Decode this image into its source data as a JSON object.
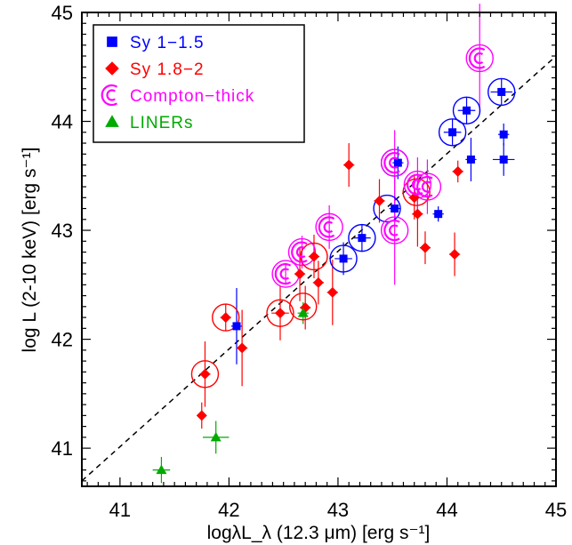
{
  "chart_data": {
    "type": "scatter",
    "title": "",
    "xlabel": "logλL_λ (12.3 μm) [erg s⁻¹]",
    "ylabel": "log L (2-10 keV) [erg s⁻¹]",
    "xlim": [
      40.65,
      45.0
    ],
    "ylim": [
      40.65,
      45.0
    ],
    "x_ticks": [
      "41",
      "42",
      "43",
      "44",
      "45"
    ],
    "y_ticks": [
      "41",
      "42",
      "43",
      "44",
      "45"
    ],
    "legend_position": "top-left",
    "grid": false,
    "fit_line": {
      "style": "dashed",
      "x": [
        40.65,
        45.0
      ],
      "y": [
        40.7,
        44.6
      ]
    },
    "series": [
      {
        "name": "Sy 1−1.5",
        "marker": "square",
        "color": "#0000ff",
        "points": [
          {
            "x": 42.07,
            "y": 42.12,
            "xerr": 0.05,
            "yerr": 0.35
          },
          {
            "x": 43.05,
            "y": 42.74,
            "xerr": 0.08,
            "yerr": 0.15
          },
          {
            "x": 43.22,
            "y": 42.93,
            "xerr": 0.08,
            "yerr": 0.12
          },
          {
            "x": 43.52,
            "y": 43.2,
            "xerr": 0.05,
            "yerr": 0.12
          },
          {
            "x": 43.55,
            "y": 43.62,
            "xerr": 0.05,
            "yerr": 0.15
          },
          {
            "x": 43.92,
            "y": 43.15,
            "xerr": 0.05,
            "yerr": 0.07
          },
          {
            "x": 44.05,
            "y": 43.9,
            "xerr": 0.08,
            "yerr": 0.12
          },
          {
            "x": 44.18,
            "y": 44.1,
            "xerr": 0.08,
            "yerr": 0.12
          },
          {
            "x": 44.22,
            "y": 43.65,
            "xerr": 0.05,
            "yerr": 0.2
          },
          {
            "x": 44.5,
            "y": 44.27,
            "xerr": 0.1,
            "yerr": 0.12
          },
          {
            "x": 44.52,
            "y": 43.88,
            "xerr": 0.05,
            "yerr": 0.1
          },
          {
            "x": 44.52,
            "y": 43.65,
            "xerr": 0.1,
            "yerr": 0.15
          }
        ]
      },
      {
        "name": "Sy 1.8−2",
        "marker": "diamond",
        "color": "#ff0000",
        "points": [
          {
            "x": 41.75,
            "y": 41.3,
            "xerr": 0.0,
            "yerr": 0.12
          },
          {
            "x": 41.78,
            "y": 41.68,
            "xerr": 0.05,
            "yerr": 0.3
          },
          {
            "x": 41.97,
            "y": 42.2,
            "xerr": 0.05,
            "yerr": 0.12
          },
          {
            "x": 42.12,
            "y": 41.92,
            "xerr": 0.05,
            "yerr": 0.35
          },
          {
            "x": 42.47,
            "y": 42.24,
            "xerr": 0.08,
            "yerr": 0.25
          },
          {
            "x": 42.65,
            "y": 42.6,
            "xerr": 0.05,
            "yerr": 0.25
          },
          {
            "x": 42.7,
            "y": 42.29,
            "xerr": 0.05,
            "yerr": 0.2
          },
          {
            "x": 42.78,
            "y": 42.76,
            "xerr": 0.05,
            "yerr": 0.2
          },
          {
            "x": 42.82,
            "y": 42.52,
            "xerr": 0.05,
            "yerr": 0.2
          },
          {
            "x": 42.95,
            "y": 42.43,
            "xerr": 0.05,
            "yerr": 0.3
          },
          {
            "x": 43.1,
            "y": 43.6,
            "xerr": 0.05,
            "yerr": 0.2
          },
          {
            "x": 43.38,
            "y": 43.27,
            "xerr": 0.05,
            "yerr": 0.2
          },
          {
            "x": 43.7,
            "y": 43.3,
            "xerr": 0.05,
            "yerr": 0.2
          },
          {
            "x": 43.73,
            "y": 43.15,
            "xerr": 0.05,
            "yerr": 0.3
          },
          {
            "x": 43.8,
            "y": 42.84,
            "xerr": 0.05,
            "yerr": 0.15
          },
          {
            "x": 44.07,
            "y": 42.78,
            "xerr": 0.05,
            "yerr": 0.2
          },
          {
            "x": 44.1,
            "y": 43.54,
            "xerr": 0.05,
            "yerr": 0.1
          }
        ]
      },
      {
        "name": "Compton−thick",
        "marker": "C",
        "color": "#ff00ff",
        "points": [
          {
            "x": 42.52,
            "y": 42.6,
            "yerr": 0.1
          },
          {
            "x": 42.67,
            "y": 42.8,
            "yerr": 0.15
          },
          {
            "x": 42.92,
            "y": 43.03,
            "yerr": 0.2
          },
          {
            "x": 43.52,
            "y": 43.62,
            "yerr": 0.3
          },
          {
            "x": 43.52,
            "y": 43.0,
            "yerr": 0.5
          },
          {
            "x": 43.73,
            "y": 43.42,
            "yerr": 0.25
          },
          {
            "x": 43.82,
            "y": 43.4,
            "yerr": 0.25
          },
          {
            "x": 44.3,
            "y": 44.58,
            "yerr": 0.5
          }
        ]
      },
      {
        "name": "LINERs",
        "marker": "triangle",
        "color": "#00aa00",
        "points": [
          {
            "x": 41.38,
            "y": 40.8,
            "xerr": 0.08,
            "yerr": 0.12
          },
          {
            "x": 41.88,
            "y": 41.1,
            "xerr": 0.12,
            "yerr": 0.15
          },
          {
            "x": 42.68,
            "y": 42.24,
            "xerr": 0.05,
            "yerr": 0.1
          }
        ]
      }
    ],
    "rings": [
      {
        "x": 41.78,
        "y": 41.68,
        "color": "#ff0000"
      },
      {
        "x": 41.97,
        "y": 42.2,
        "color": "#ff0000"
      },
      {
        "x": 42.47,
        "y": 42.24,
        "color": "#ff0000"
      },
      {
        "x": 42.52,
        "y": 42.6,
        "color": "#ff00ff"
      },
      {
        "x": 42.68,
        "y": 42.3,
        "color": "#ff0000"
      },
      {
        "x": 42.67,
        "y": 42.8,
        "color": "#ff00ff"
      },
      {
        "x": 42.78,
        "y": 42.76,
        "color": "#ff0000"
      },
      {
        "x": 42.92,
        "y": 43.03,
        "color": "#ff00ff"
      },
      {
        "x": 43.05,
        "y": 42.74,
        "color": "#0000ff"
      },
      {
        "x": 43.22,
        "y": 42.93,
        "color": "#0000ff"
      },
      {
        "x": 43.45,
        "y": 43.2,
        "color": "#0000ff"
      },
      {
        "x": 43.52,
        "y": 43.62,
        "color": "#0000ff"
      },
      {
        "x": 43.52,
        "y": 43.62,
        "color": "#ff00ff"
      },
      {
        "x": 43.52,
        "y": 43.0,
        "color": "#ff00ff"
      },
      {
        "x": 43.72,
        "y": 43.35,
        "color": "#ff0000"
      },
      {
        "x": 43.73,
        "y": 43.42,
        "color": "#ff00ff"
      },
      {
        "x": 43.82,
        "y": 43.4,
        "color": "#ff00ff"
      },
      {
        "x": 44.05,
        "y": 43.9,
        "color": "#0000ff"
      },
      {
        "x": 44.18,
        "y": 44.1,
        "color": "#0000ff"
      },
      {
        "x": 44.3,
        "y": 44.58,
        "color": "#ff00ff"
      },
      {
        "x": 44.5,
        "y": 44.27,
        "color": "#0000ff"
      }
    ]
  }
}
